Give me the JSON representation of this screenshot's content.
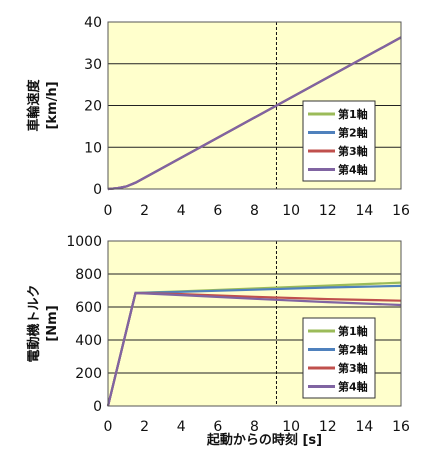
{
  "chart_data": [
    {
      "type": "line",
      "ylabel": "車輪速度\n[km/h]",
      "xlabel": "",
      "xlim": [
        0,
        16
      ],
      "ylim": [
        0,
        40
      ],
      "x_ticks": [
        0,
        2,
        4,
        6,
        8,
        10,
        12,
        14,
        16
      ],
      "y_ticks": [
        0,
        10,
        20,
        30,
        40
      ],
      "grid": "horizontal",
      "vline_x": 9.2,
      "legend": "right",
      "series": [
        {
          "name": "第1軸",
          "color": "#9bbb59",
          "x": [
            0,
            0.5,
            1,
            1.5,
            16
          ],
          "y": [
            0,
            0.2,
            0.6,
            1.5,
            36.3
          ]
        },
        {
          "name": "第2軸",
          "color": "#4f81bd",
          "x": [
            0,
            0.5,
            1,
            1.5,
            16
          ],
          "y": [
            0,
            0.2,
            0.6,
            1.5,
            36.3
          ]
        },
        {
          "name": "第3軸",
          "color": "#c0504d",
          "x": [
            0,
            0.5,
            1,
            1.5,
            16
          ],
          "y": [
            0,
            0.2,
            0.6,
            1.5,
            36.3
          ]
        },
        {
          "name": "第4軸",
          "color": "#8064a2",
          "x": [
            0,
            0.5,
            1,
            1.5,
            16
          ],
          "y": [
            0,
            0.2,
            0.6,
            1.5,
            36.3
          ]
        }
      ]
    },
    {
      "type": "line",
      "ylabel": "電動機トルク\n[Nm]",
      "xlabel": "起動からの時刻 [s]",
      "xlim": [
        0,
        16
      ],
      "ylim": [
        0,
        1000
      ],
      "x_ticks": [
        0,
        2,
        4,
        6,
        8,
        10,
        12,
        14,
        16
      ],
      "y_ticks": [
        0,
        200,
        400,
        600,
        800,
        1000
      ],
      "grid": "horizontal",
      "vline_x": 9.2,
      "legend": "right",
      "series": [
        {
          "name": "第1軸",
          "color": "#9bbb59",
          "x": [
            0,
            1.5,
            4,
            8,
            12,
            16
          ],
          "y": [
            0,
            685,
            695,
            712,
            730,
            748
          ]
        },
        {
          "name": "第2軸",
          "color": "#4f81bd",
          "x": [
            0,
            1.5,
            4,
            8,
            12,
            16
          ],
          "y": [
            0,
            685,
            692,
            705,
            718,
            728
          ]
        },
        {
          "name": "第3軸",
          "color": "#c0504d",
          "x": [
            0,
            1.5,
            4,
            8,
            12,
            16
          ],
          "y": [
            0,
            685,
            678,
            662,
            648,
            638
          ]
        },
        {
          "name": "第4軸",
          "color": "#8064a2",
          "x": [
            0,
            1.5,
            4,
            8,
            12,
            16
          ],
          "y": [
            0,
            685,
            672,
            650,
            630,
            612
          ]
        }
      ]
    }
  ]
}
